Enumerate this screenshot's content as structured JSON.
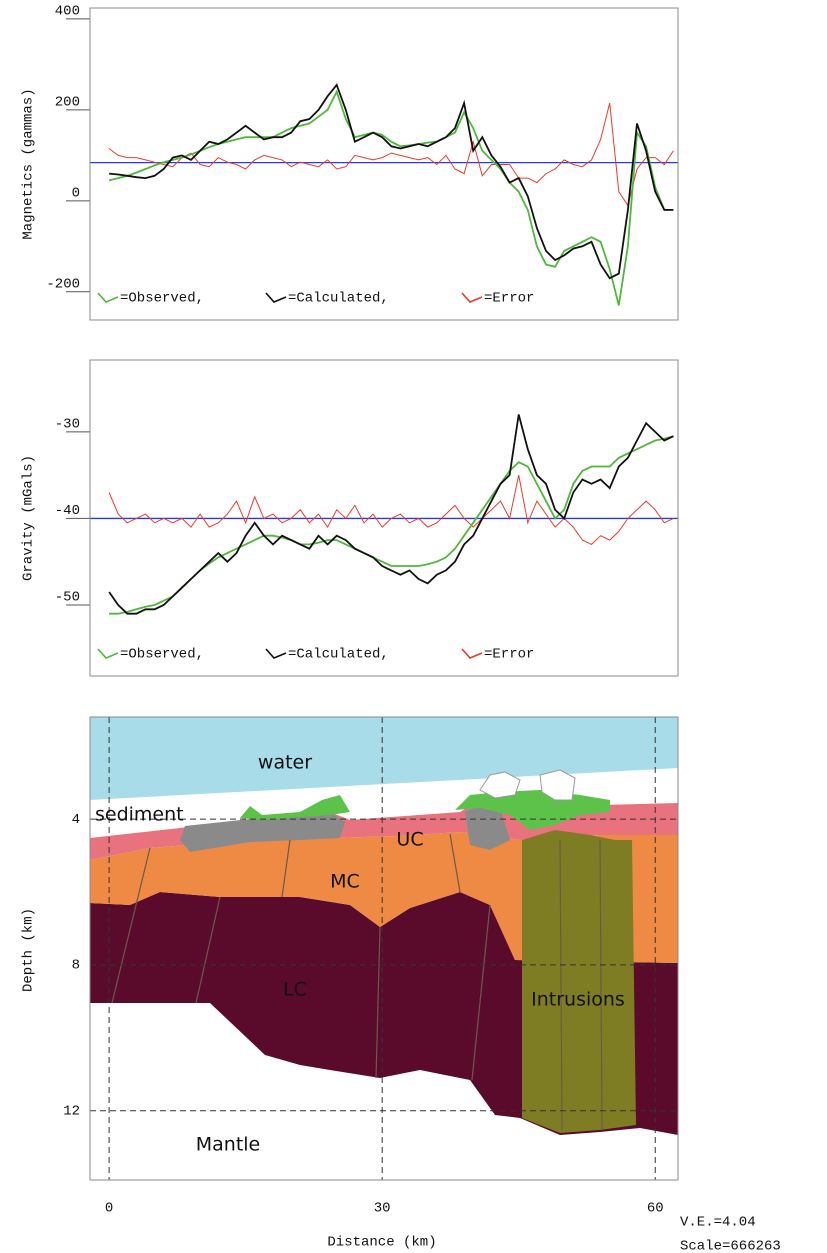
{
  "chart_data": [
    {
      "type": "line",
      "ylabel": "Magnetics (gammas)",
      "x": [
        0,
        1,
        2,
        3,
        4,
        5,
        6,
        7,
        8,
        9,
        10,
        11,
        12,
        13,
        14,
        15,
        16,
        17,
        18,
        19,
        20,
        21,
        22,
        23,
        24,
        25,
        26,
        27,
        28,
        29,
        30,
        31,
        32,
        33,
        34,
        35,
        36,
        37,
        38,
        39,
        40,
        41,
        42,
        43,
        44,
        45,
        46,
        47,
        48,
        49,
        50,
        51,
        52,
        53,
        54,
        55,
        56,
        57,
        58,
        59,
        60,
        61,
        62
      ],
      "xlim": [
        -2.1,
        62.5
      ],
      "ylim": [
        -262,
        424
      ],
      "yticks": [
        -200,
        0,
        200,
        400
      ],
      "hline": 84,
      "hline_color": "#2b3bd6",
      "series": [
        {
          "name": "=Observed,",
          "color": "#4fb83a",
          "values": [
            45,
            50,
            55,
            62,
            70,
            78,
            85,
            90,
            95,
            102,
            110,
            118,
            125,
            130,
            135,
            140,
            140,
            140,
            140,
            150,
            160,
            165,
            170,
            185,
            200,
            240,
            180,
            140,
            145,
            150,
            145,
            130,
            120,
            122,
            125,
            128,
            130,
            140,
            150,
            195,
            160,
            110,
            90,
            70,
            40,
            20,
            -20,
            -100,
            -140,
            -145,
            -110,
            -100,
            -90,
            -80,
            -90,
            -150,
            -230,
            -100,
            150,
            120,
            30,
            -20,
            -20
          ]
        },
        {
          "name": "=Calculated,",
          "color": "#111111",
          "values": [
            60,
            58,
            55,
            52,
            50,
            55,
            70,
            95,
            100,
            90,
            110,
            130,
            125,
            135,
            150,
            165,
            150,
            135,
            140,
            140,
            150,
            175,
            180,
            200,
            230,
            255,
            200,
            130,
            140,
            150,
            140,
            120,
            115,
            120,
            125,
            120,
            130,
            140,
            160,
            215,
            110,
            140,
            100,
            75,
            40,
            50,
            10,
            -60,
            -110,
            -130,
            -120,
            -105,
            -100,
            -90,
            -140,
            -170,
            -160,
            -20,
            170,
            110,
            20,
            -20,
            -20
          ]
        },
        {
          "name": "=Error",
          "color": "#ee3a2a",
          "values": [
            115,
            100,
            95,
            95,
            90,
            85,
            80,
            75,
            95,
            105,
            80,
            75,
            95,
            85,
            80,
            70,
            90,
            100,
            95,
            90,
            75,
            85,
            80,
            75,
            90,
            70,
            75,
            100,
            95,
            90,
            95,
            105,
            100,
            95,
            90,
            95,
            80,
            100,
            70,
            60,
            130,
            55,
            80,
            80,
            80,
            50,
            50,
            40,
            60,
            70,
            90,
            80,
            75,
            90,
            135,
            215,
            20,
            -10,
            70,
            95,
            95,
            80,
            110
          ]
        }
      ]
    },
    {
      "type": "line",
      "ylabel": "Gravity (mGals)",
      "x": [
        0,
        1,
        2,
        3,
        4,
        5,
        6,
        7,
        8,
        9,
        10,
        11,
        12,
        13,
        14,
        15,
        16,
        17,
        18,
        19,
        20,
        21,
        22,
        23,
        24,
        25,
        26,
        27,
        28,
        29,
        30,
        31,
        32,
        33,
        34,
        35,
        36,
        37,
        38,
        39,
        40,
        41,
        42,
        43,
        44,
        45,
        46,
        47,
        48,
        49,
        50,
        51,
        52,
        53,
        54,
        55,
        56,
        57,
        58,
        59,
        60,
        61,
        62
      ],
      "xlim": [
        -2.1,
        62.5
      ],
      "ylim": [
        -58.2,
        -21.7
      ],
      "yticks": [
        -50,
        -40,
        -30
      ],
      "hline": -40,
      "hline_color": "#2b3bd6",
      "series": [
        {
          "name": "=Observed,",
          "color": "#4fb83a",
          "values": [
            -51,
            -51,
            -50.8,
            -50.5,
            -50.2,
            -50,
            -49.5,
            -49,
            -48,
            -47,
            -46,
            -45.2,
            -44.5,
            -44,
            -43.5,
            -43,
            -42.5,
            -42,
            -42,
            -42.2,
            -42.5,
            -43,
            -43,
            -42.8,
            -42.5,
            -42.5,
            -43,
            -43.5,
            -44,
            -44.5,
            -45,
            -45.5,
            -45.5,
            -45.5,
            -45.5,
            -45.3,
            -45,
            -44.5,
            -43.5,
            -42,
            -40.5,
            -39,
            -37.5,
            -36,
            -34.5,
            -33.5,
            -34,
            -36,
            -38,
            -40,
            -39,
            -36,
            -34.5,
            -34,
            -34,
            -34,
            -33,
            -32.5,
            -32,
            -31.5,
            -31,
            -30.8,
            -30.5
          ]
        },
        {
          "name": "=Calculated,",
          "color": "#111111",
          "values": [
            -48.5,
            -50,
            -51,
            -51,
            -50.5,
            -50.5,
            -50,
            -49,
            -48,
            -47,
            -46,
            -45,
            -44,
            -45,
            -44,
            -42,
            -40.5,
            -42,
            -43,
            -42,
            -42.5,
            -43,
            -43.5,
            -42,
            -43,
            -42,
            -42.5,
            -43.5,
            -44,
            -44.5,
            -45.5,
            -46,
            -46.5,
            -46,
            -47,
            -47.5,
            -46.5,
            -46,
            -45,
            -43,
            -42,
            -40,
            -38,
            -36,
            -35,
            -28,
            -32,
            -35,
            -36,
            -39,
            -40,
            -37,
            -35.5,
            -36,
            -35.5,
            -36.5,
            -34,
            -33,
            -31,
            -29,
            -30,
            -31,
            -30.5
          ]
        },
        {
          "name": "=Error",
          "color": "#ee3a2a",
          "values": [
            -37,
            -39.5,
            -40.5,
            -40,
            -39.5,
            -40.5,
            -40,
            -40.5,
            -40,
            -41,
            -39.5,
            -41,
            -40.5,
            -39.5,
            -38,
            -40.5,
            -37.5,
            -40,
            -39.5,
            -40.5,
            -40,
            -39,
            -40.5,
            -39.5,
            -41,
            -39,
            -40,
            -38.5,
            -40.5,
            -39.5,
            -41,
            -40,
            -39.5,
            -40.5,
            -40,
            -41,
            -40.5,
            -39.5,
            -38.5,
            -40,
            -41,
            -40,
            -39,
            -38,
            -40,
            -35,
            -40.5,
            -38,
            -39.5,
            -41,
            -40,
            -41,
            -42.5,
            -43,
            -42,
            -42.5,
            -41.5,
            -40,
            -39,
            -38,
            -39,
            -40.5,
            -40
          ]
        }
      ]
    },
    {
      "type": "section",
      "xlabel": "Distance (km)",
      "ylabel": "Depth (km)",
      "xlim": [
        -2.1,
        62.5
      ],
      "ylim": [
        13.9,
        1.2
      ],
      "xticks": [
        0,
        30,
        60
      ],
      "yticks": [
        4,
        8,
        12
      ],
      "labels": [
        "water",
        "sediment",
        "UC",
        "MC",
        "LC",
        "Intrusions",
        "Mantle"
      ],
      "annotations": [
        "V.E.=4.04",
        "Scale=666263"
      ]
    }
  ]
}
